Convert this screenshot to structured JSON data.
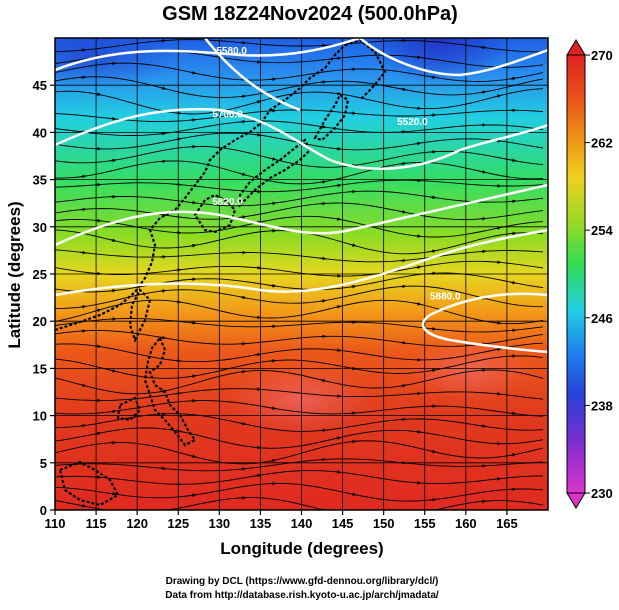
{
  "title": "GSM 18Z24Nov2024 (500.0hPa)",
  "xlabel": "Longitude (degrees)",
  "ylabel": "Latitude  (degrees)",
  "credits": [
    "Drawing by DCL (https://www.gfd-dennou.org/library/dcl/)",
    "Data from http://database.rish.kyoto-u.ac.jp/arch/jmadata/"
  ],
  "map": {
    "lon_range": [
      110,
      170
    ],
    "lat_range": [
      0,
      50
    ],
    "x_ticks": [
      110,
      115,
      120,
      125,
      130,
      135,
      140,
      145,
      150,
      155,
      160,
      165
    ],
    "y_ticks": [
      0,
      5,
      10,
      15,
      20,
      25,
      30,
      35,
      40,
      45
    ],
    "grid": true,
    "contour_labels": [
      {
        "text": "5580.0",
        "lon": 131.5,
        "lat": 48.3
      },
      {
        "text": "5700.0",
        "lon": 131.0,
        "lat": 41.6
      },
      {
        "text": "5820.0",
        "lon": 131.0,
        "lat": 32.3
      },
      {
        "text": "5520.0",
        "lon": 153.5,
        "lat": 40.8
      },
      {
        "text": "5880.0",
        "lon": 157.5,
        "lat": 22.3
      }
    ]
  },
  "colorbar": {
    "min": 230,
    "max": 270,
    "labels": [
      "270",
      "262",
      "254",
      "246",
      "238",
      "230"
    ],
    "label_values": [
      270,
      262,
      254,
      246,
      238,
      230
    ],
    "colors": [
      "#cc33cc",
      "#3a2fcf",
      "#1e7ff0",
      "#22d0e0",
      "#33dd55",
      "#aadd22",
      "#f0d020",
      "#f08010",
      "#e8401a",
      "#e02020"
    ]
  }
}
